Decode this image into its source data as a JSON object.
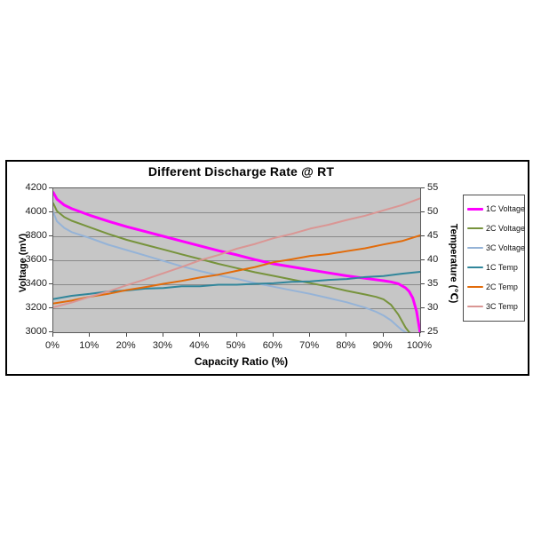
{
  "chart": {
    "title": "Different Discharge Rate @ RT",
    "x_axis": {
      "title": "Capacity Ratio (%)",
      "tick_labels": [
        "0%",
        "10%",
        "20%",
        "30%",
        "40%",
        "50%",
        "60%",
        "70%",
        "80%",
        "90%",
        "100%"
      ]
    },
    "y_axis_left": {
      "title": "Voltage (mV)",
      "tick_labels": [
        "4200",
        "4000",
        "3800",
        "3600",
        "3400",
        "3200",
        "3000"
      ]
    },
    "y_axis_right": {
      "title": "Temperature (℃)",
      "tick_labels": [
        "55",
        "50",
        "45",
        "40",
        "35",
        "30",
        "25"
      ]
    },
    "legend": {
      "items": [
        {
          "label": "1C Voltage",
          "color": "#FF00FF",
          "width": 3
        },
        {
          "label": "2C Voltage",
          "color": "#77933C",
          "width": 2
        },
        {
          "label": "3C Voltage",
          "color": "#95B3D7",
          "width": 2
        },
        {
          "label": "1C Temp",
          "color": "#31869B",
          "width": 2
        },
        {
          "label": "2C Temp",
          "color": "#E26B0A",
          "width": 2
        },
        {
          "label": "3C Temp",
          "color": "#DA9694",
          "width": 2
        }
      ]
    },
    "colors": {
      "plot_background": "#c6c6c6",
      "gridline": "#8a8a8a",
      "frame_border": "#000000"
    }
  },
  "chart_data": {
    "type": "line",
    "title": "Different Discharge Rate @ RT",
    "xlabel": "Capacity Ratio (%)",
    "ylabel_left": "Voltage (mV)",
    "ylabel_right": "Temperature (℃)",
    "x_range_percent": [
      0,
      100
    ],
    "y_left": {
      "min": 3000,
      "max": 4200,
      "ticks": [
        4200,
        4000,
        3800,
        3600,
        3400,
        3200,
        3000
      ]
    },
    "y_right": {
      "min": 25,
      "max": 55,
      "ticks": [
        55,
        50,
        45,
        40,
        35,
        30,
        25
      ]
    },
    "grid": "horizontal-only",
    "legend_position": "right-outside",
    "series": [
      {
        "name": "1C Voltage",
        "axis": "left",
        "color": "#FF00FF",
        "width": 3,
        "x": [
          0,
          1,
          3,
          5,
          10,
          15,
          20,
          25,
          30,
          35,
          40,
          45,
          50,
          55,
          60,
          65,
          70,
          75,
          80,
          85,
          90,
          92,
          94,
          96,
          97,
          98,
          99,
          100
        ],
        "y": [
          4165,
          4110,
          4060,
          4030,
          3975,
          3925,
          3880,
          3840,
          3800,
          3760,
          3720,
          3680,
          3645,
          3605,
          3570,
          3545,
          3520,
          3495,
          3470,
          3450,
          3430,
          3420,
          3405,
          3370,
          3340,
          3285,
          3175,
          2995
        ]
      },
      {
        "name": "2C Voltage",
        "axis": "left",
        "color": "#77933C",
        "width": 2,
        "x": [
          0,
          1,
          3,
          5,
          10,
          15,
          20,
          25,
          30,
          35,
          40,
          45,
          50,
          55,
          60,
          65,
          70,
          75,
          80,
          85,
          88,
          90,
          92,
          94,
          96,
          97,
          97.5
        ],
        "y": [
          4075,
          4010,
          3960,
          3930,
          3875,
          3820,
          3770,
          3730,
          3690,
          3650,
          3610,
          3570,
          3535,
          3500,
          3470,
          3440,
          3410,
          3380,
          3345,
          3315,
          3295,
          3275,
          3230,
          3150,
          3040,
          3000,
          2990
        ]
      },
      {
        "name": "3C Voltage",
        "axis": "left",
        "color": "#95B3D7",
        "width": 2,
        "x": [
          0,
          1,
          3,
          5,
          10,
          15,
          20,
          25,
          30,
          35,
          40,
          45,
          50,
          55,
          60,
          65,
          70,
          75,
          80,
          85,
          88,
          90,
          92,
          94,
          95,
          96,
          96.5
        ],
        "y": [
          4000,
          3925,
          3870,
          3835,
          3785,
          3730,
          3685,
          3640,
          3595,
          3550,
          3510,
          3475,
          3445,
          3410,
          3380,
          3350,
          3320,
          3285,
          3250,
          3205,
          3170,
          3140,
          3100,
          3045,
          3020,
          3000,
          2990
        ]
      },
      {
        "name": "1C Temp",
        "axis": "right",
        "color": "#31869B",
        "width": 2,
        "x": [
          0,
          5,
          10,
          15,
          20,
          25,
          30,
          35,
          40,
          45,
          50,
          55,
          60,
          65,
          70,
          75,
          80,
          85,
          90,
          95,
          100
        ],
        "y": [
          31.9,
          32.6,
          33.0,
          33.5,
          33.7,
          34.1,
          34.2,
          34.6,
          34.6,
          34.9,
          34.9,
          35.1,
          35.2,
          35.5,
          35.6,
          35.9,
          36.1,
          36.5,
          36.7,
          37.2,
          37.6
        ]
      },
      {
        "name": "2C Temp",
        "axis": "right",
        "color": "#E26B0A",
        "width": 2,
        "x": [
          0,
          5,
          10,
          15,
          20,
          25,
          30,
          35,
          40,
          45,
          50,
          55,
          60,
          65,
          70,
          75,
          80,
          85,
          90,
          95,
          100
        ],
        "y": [
          31.0,
          31.6,
          32.4,
          33.0,
          33.8,
          34.4,
          35.1,
          35.7,
          36.4,
          37.0,
          37.8,
          38.6,
          39.6,
          40.2,
          40.9,
          41.3,
          41.9,
          42.5,
          43.3,
          44.0,
          45.2
        ]
      },
      {
        "name": "3C Temp",
        "axis": "right",
        "color": "#DA9694",
        "width": 2,
        "x": [
          0,
          5,
          10,
          15,
          20,
          25,
          30,
          35,
          40,
          45,
          50,
          55,
          60,
          65,
          70,
          75,
          80,
          85,
          90,
          95,
          100
        ],
        "y": [
          30.2,
          31.2,
          32.4,
          33.5,
          34.8,
          36.0,
          37.3,
          38.6,
          40.0,
          41.1,
          42.4,
          43.4,
          44.6,
          45.5,
          46.6,
          47.4,
          48.4,
          49.3,
          50.4,
          51.5,
          52.9
        ]
      }
    ]
  }
}
